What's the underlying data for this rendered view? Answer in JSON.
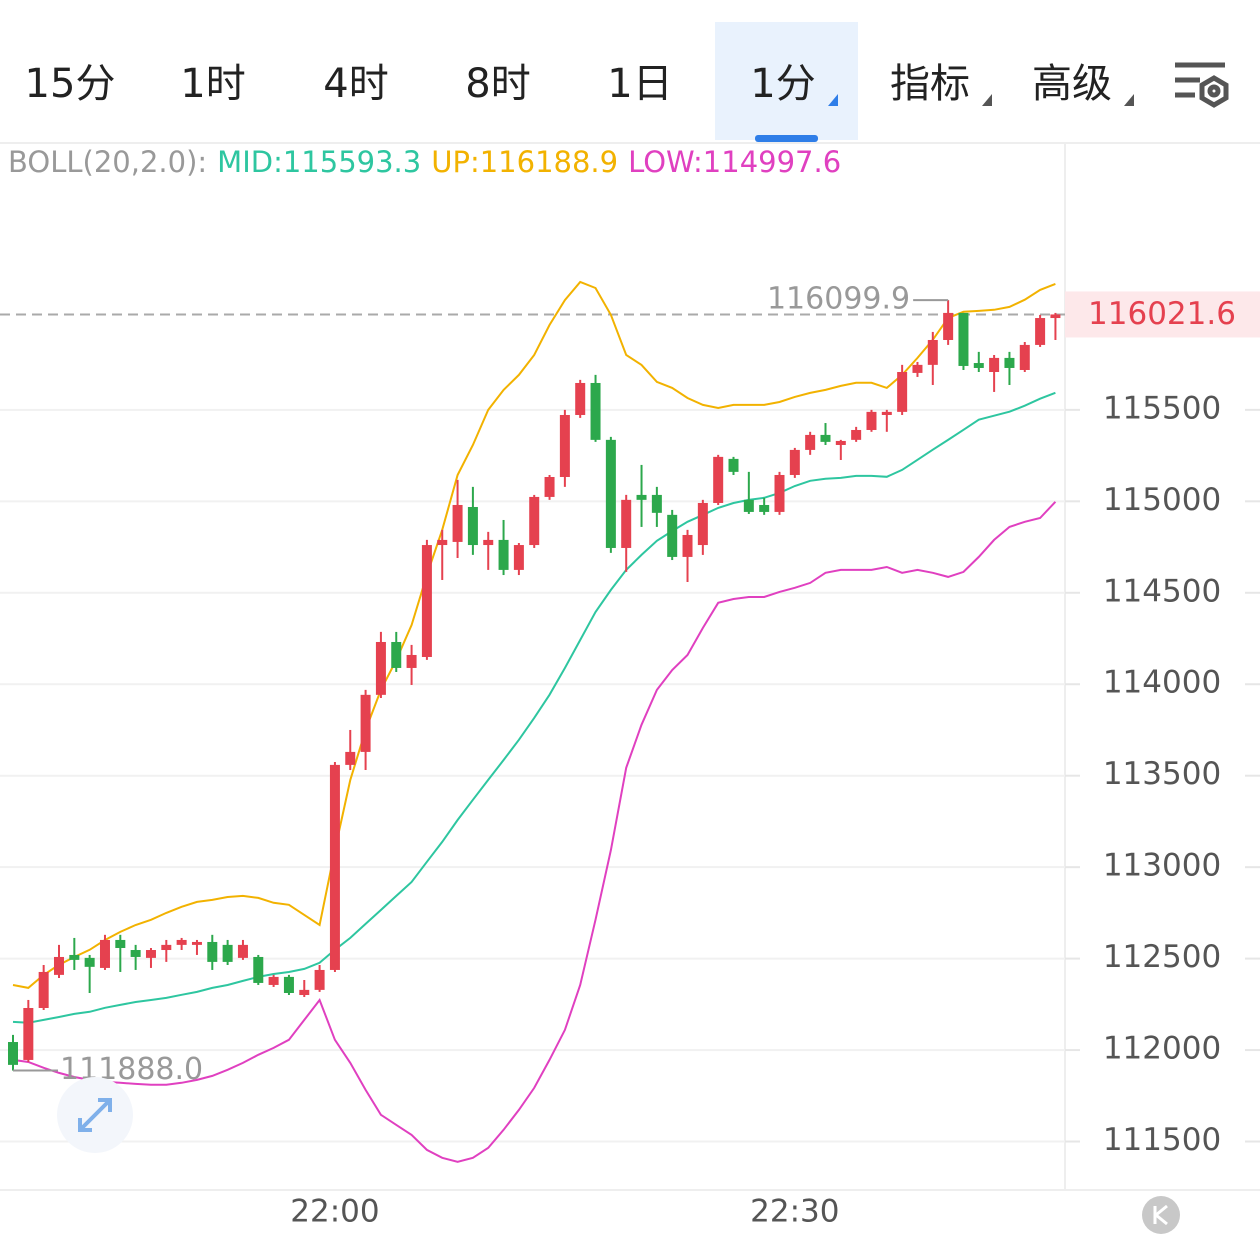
{
  "tabs": [
    "15分",
    "1时",
    "4时",
    "8时",
    "1日",
    "1分",
    "指标",
    "高级"
  ],
  "active_tab": 5,
  "chart_data": {
    "type": "candlestick",
    "indicator": "BOLL(20,2.0):",
    "categories": [
      null,
      null,
      null,
      null,
      null,
      null,
      null,
      null,
      null,
      null,
      null,
      null,
      null,
      null,
      null,
      null,
      null,
      null,
      null,
      null,
      null,
      "22:00",
      null,
      null,
      null,
      null,
      null,
      null,
      null,
      null,
      null,
      null,
      null,
      null,
      null,
      null,
      null,
      null,
      null,
      null,
      null,
      null,
      null,
      null,
      null,
      null,
      null,
      null,
      null,
      null,
      null,
      "22:30",
      null,
      null,
      null,
      null,
      null,
      null,
      null,
      null,
      null,
      null,
      null,
      null,
      null,
      null,
      null,
      null,
      null
    ],
    "open": [
      112044,
      111946,
      112230,
      112411,
      112520,
      112504,
      112449,
      112602,
      112547,
      112504,
      112547,
      112575,
      112575,
      112591,
      112575,
      112504,
      112509,
      112356,
      112400,
      112301,
      112329,
      112438,
      113559,
      113630,
      113942,
      114231,
      114089,
      114149,
      114761,
      114778,
      114969,
      114761,
      114789,
      114625,
      114761,
      115024,
      115133,
      115472,
      115647,
      115336,
      114745,
      115035,
      115035,
      114926,
      114696,
      114761,
      114991,
      115232,
      115008,
      114980,
      114942,
      115144,
      115281,
      115363,
      115308,
      115336,
      115390,
      115472,
      115489,
      115702,
      115746,
      115882,
      116030,
      115756,
      115707,
      115784,
      115718,
      115855,
      116002
    ],
    "high": [
      112083,
      112274,
      112465,
      112575,
      112613,
      112520,
      112630,
      112630,
      112575,
      112558,
      112602,
      112613,
      112602,
      112630,
      112602,
      112602,
      112520,
      112411,
      112411,
      112383,
      112465,
      113575,
      113750,
      113969,
      114286,
      114286,
      114215,
      114789,
      114844,
      115117,
      115079,
      114833,
      114898,
      114772,
      115035,
      115144,
      115500,
      115664,
      115691,
      115352,
      115035,
      115199,
      115079,
      114953,
      114844,
      115008,
      115254,
      115243,
      115161,
      115019,
      115161,
      115292,
      115380,
      115428,
      115336,
      115407,
      115500,
      115500,
      115746,
      115762,
      115926,
      116099.9,
      116030,
      115817,
      115800,
      115817,
      115871,
      116019,
      116030
    ],
    "low": [
      111888.0,
      111935,
      112219,
      112394,
      112438,
      112312,
      112438,
      112427,
      112438,
      112449,
      112482,
      112547,
      112520,
      112438,
      112465,
      112493,
      112356,
      112345,
      112301,
      112290,
      112318,
      112427,
      113531,
      113531,
      113925,
      114067,
      113996,
      114133,
      114570,
      114690,
      114707,
      114625,
      114597,
      114597,
      114745,
      115008,
      115079,
      115456,
      115325,
      114718,
      114614,
      114860,
      114860,
      114679,
      114559,
      114707,
      114980,
      115144,
      114931,
      114926,
      114926,
      115128,
      115254,
      115308,
      115226,
      115325,
      115380,
      115380,
      115472,
      115680,
      115636,
      115855,
      115718,
      115707,
      115598,
      115636,
      115707,
      115844,
      115882
    ],
    "close": [
      111919,
      112230,
      112427,
      112509,
      112493,
      112455,
      112602,
      112558,
      112509,
      112547,
      112575,
      112602,
      112591,
      112482,
      112482,
      112575,
      112367,
      112400,
      112312,
      112329,
      112438,
      113559,
      113630,
      113942,
      114231,
      114089,
      114160,
      114761,
      114789,
      114980,
      114761,
      114789,
      114625,
      114761,
      115024,
      115133,
      115472,
      115647,
      115336,
      114745,
      115008,
      115008,
      114937,
      114696,
      114816,
      114991,
      115243,
      115161,
      114942,
      114942,
      115144,
      115281,
      115363,
      115325,
      115330,
      115390,
      115489,
      115489,
      115707,
      115746,
      115882,
      116030,
      115740,
      115729,
      115784,
      115729,
      115855,
      116002,
      116021.6
    ],
    "up_color": "#e5414f",
    "down_color": "#2ca84c",
    "series": [
      {
        "name": "MID:115593.3",
        "color": "#2ec6a0",
        "values": [
          112154,
          112149,
          112165,
          112181,
          112198,
          112209,
          112231,
          112247,
          112263,
          112274,
          112285,
          112302,
          112318,
          112340,
          112356,
          112378,
          112400,
          112416,
          112427,
          112444,
          112477,
          112548,
          112613,
          112690,
          112766,
          112843,
          112919,
          113029,
          113138,
          113258,
          113368,
          113477,
          113586,
          113696,
          113816,
          113942,
          114089,
          114242,
          114395,
          114516,
          114625,
          114707,
          114784,
          114838,
          114888,
          114926,
          114964,
          114991,
          115008,
          115019,
          115046,
          115084,
          115112,
          115123,
          115128,
          115139,
          115139,
          115134,
          115172,
          115227,
          115282,
          115336,
          115391,
          115446,
          115468,
          115490,
          115523,
          115561,
          115593.3
        ]
      },
      {
        "name": "UP:116188.9",
        "color": "#f2b200",
        "values": [
          112356,
          112340,
          112411,
          112466,
          112509,
          112548,
          112602,
          112646,
          112684,
          112712,
          112750,
          112783,
          112810,
          112821,
          112837,
          112843,
          112832,
          112805,
          112794,
          112739,
          112684,
          113094,
          113477,
          113750,
          113969,
          114133,
          114324,
          114598,
          114844,
          115144,
          115308,
          115500,
          115609,
          115691,
          115800,
          115964,
          116100,
          116199,
          116166,
          116019,
          115800,
          115746,
          115653,
          115620,
          115565,
          115527,
          115510,
          115527,
          115527,
          115527,
          115543,
          115571,
          115593,
          115609,
          115631,
          115648,
          115648,
          115620,
          115691,
          115784,
          115883,
          116003,
          116036,
          116041,
          116047,
          116063,
          116102,
          116156,
          116188.9
        ]
      },
      {
        "name": "LOW:114997.6",
        "color": "#e040c0",
        "values": [
          111946,
          111935,
          111903,
          111875,
          111853,
          111837,
          111826,
          111821,
          111815,
          111810,
          111810,
          111821,
          111837,
          111859,
          111892,
          111930,
          111974,
          112012,
          112056,
          112165,
          112274,
          112056,
          111930,
          111782,
          111646,
          111591,
          111536,
          111454,
          111411,
          111389,
          111411,
          111465,
          111564,
          111673,
          111793,
          111946,
          112110,
          112356,
          112712,
          113094,
          113543,
          113778,
          113969,
          114078,
          114160,
          114308,
          114445,
          114466,
          114477,
          114477,
          114505,
          114527,
          114554,
          114609,
          114625,
          114625,
          114625,
          114641,
          114609,
          114625,
          114609,
          114587,
          114614,
          114696,
          114789,
          114860,
          114888,
          114909,
          114997.6
        ]
      }
    ],
    "ylim": [
      111235,
      116948
    ],
    "yticks": [
      111500,
      112000,
      112500,
      113000,
      113500,
      114000,
      114500,
      115000,
      115500
    ],
    "high_mark": {
      "value": 116099.9,
      "label": "116099.9"
    },
    "low_mark": {
      "value": 111888.0,
      "label": "111888.0"
    },
    "last_price": {
      "value": 116021.6,
      "label": "116021.6"
    },
    "grid": true
  }
}
